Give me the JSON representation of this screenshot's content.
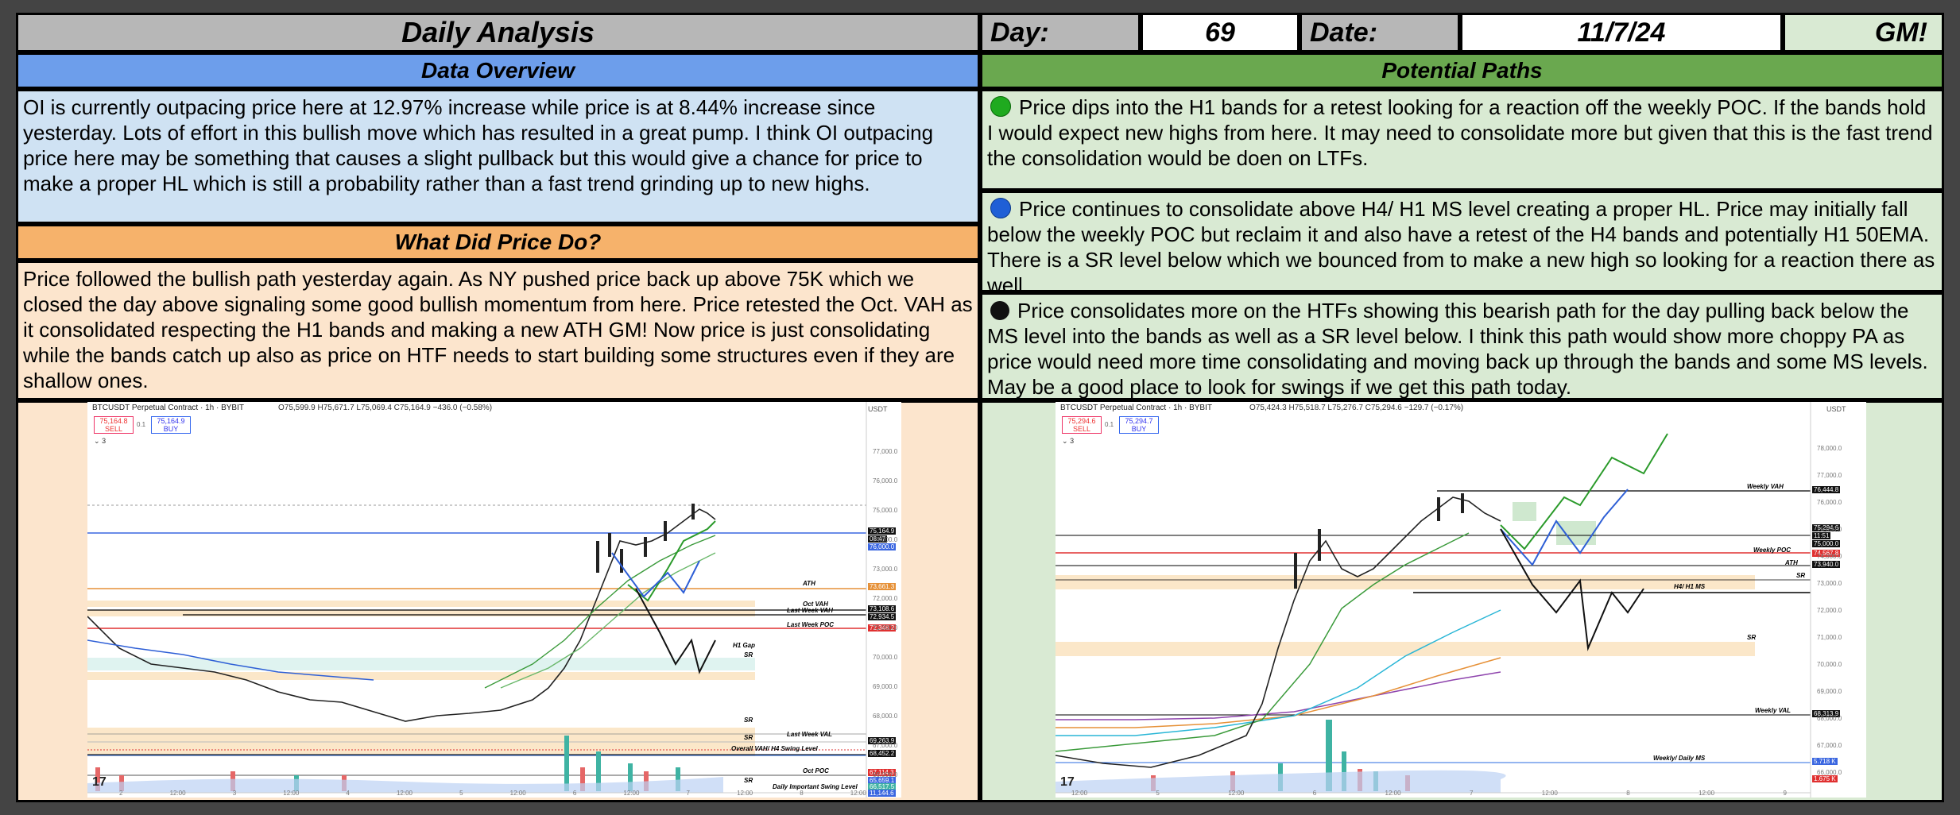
{
  "header": {
    "title": "Daily Analysis",
    "day_label": "Day:",
    "day_value": "69",
    "date_label": "Date:",
    "date_value": "11/7/24",
    "greeting": "GM!"
  },
  "data_overview": {
    "title": "Data Overview",
    "text": "OI is currently outpacing price here at 12.97% increase while price is at 8.44% increase since yesterday. Lots of effort in this bullish move which has resulted in a great pump. I think OI outpacing price here may be something that causes a slight pullback but this would give a chance for price to make a proper HL which is still a probability rather than a fast trend grinding up to new highs."
  },
  "what_did_price_do": {
    "title": "What Did Price Do?",
    "text": "Price followed the bullish path yesterday again. As NY pushed price back up above 75K which we closed the day above signaling some good bullish momentum from here. Price retested the Oct. VAH as it consolidated respecting the H1 bands and making a new ATH GM! Now price is just consolidating while the bands catch up also as price on HTF needs to start building some structures even if they are shallow ones."
  },
  "potential_paths": {
    "title": "Potential Paths",
    "paths": [
      {
        "color": "#1faa1f",
        "text": "Price dips into the H1 bands for a retest looking for a reaction off the weekly POC. If the bands hold I would expect new highs from here. It may need to consolidate more but given that this is the fast trend the consolidation would be doen on LTFs."
      },
      {
        "color": "#1f5fd6",
        "text": "Price continues to consolidate above H4/ H1 MS level creating a proper HL. Price may initially fall below the weekly POC but reclaim it and also have a retest of the H4 bands and potentially H1 50EMA. There is a SR level below which we bounced from to make a new high so looking for a reaction there as well."
      },
      {
        "color": "#111111",
        "text": "Price consolidates more on the HTFs showing this bearish path for the day pulling back below the MS level into the bands as well as a SR level below. I think this path would show more choppy PA as price would need more time consolidating and moving back up through the bands and some MS levels. May be a good place to look for swings if we get this path today."
      }
    ]
  },
  "chart_left": {
    "symbol": "BTCUSDT Perpetual Contract · 1h · BYBIT",
    "ohlc": "O75,599.9 H75,671.7 L75,069.4 C75,164.9 −436.0 (−0.58%)",
    "sell_price": "75,164.8",
    "sell_label": "SELL",
    "spread": "0.1",
    "buy_price": "75,164.9",
    "buy_label": "BUY",
    "indicator_count": "3",
    "currency": "USDT",
    "levels": [
      "ATH",
      "Oct VAH",
      "Last Week VAH",
      "Last Week POC",
      "H1 Gap",
      "SR",
      "SR",
      "SR",
      "Last Week VAL",
      "Overall VAH/ H4 Swing Level",
      "Oct POC",
      "SR",
      "Daily Important Swing Level"
    ],
    "price_tags": [
      "75,164.9",
      "08:47",
      "76,000.0",
      "73,661.3",
      "73,108.6",
      "72,934.5",
      "72,348.2",
      "69,263.9",
      "68,452.2",
      "67,114.3",
      "65,659.1",
      "66,517.5",
      "11,144.6"
    ],
    "axis_prices": [
      "77,000.0",
      "76,000.0",
      "75,000.0",
      "74,000.0",
      "73,000.0",
      "72,000.0",
      "71,000.0",
      "70,000.0",
      "69,000.0",
      "68,000.0",
      "67,000.0",
      "66,000.0",
      "65,000.0"
    ],
    "time_ticks": [
      "2",
      "12:00",
      "3",
      "12:00",
      "4",
      "12:00",
      "5",
      "12:00",
      "6",
      "12:00",
      "7",
      "12:00",
      "8",
      "12:00"
    ]
  },
  "chart_right": {
    "symbol": "BTCUSDT Perpetual Contract · 1h · BYBIT",
    "ohlc": "O75,424.3 H75,518.7 L75,276.7 C75,294.6 −129.7 (−0.17%)",
    "sell_price": "75,294.6",
    "sell_label": "SELL",
    "spread": "0.1",
    "buy_price": "75,294.7",
    "buy_label": "BUY",
    "indicator_count": "3",
    "currency": "USDT",
    "levels": [
      "Weekly VAH",
      "Weekly POC",
      "ATH",
      "SR",
      "H4/ H1 MS",
      "SR",
      "Weekly VAL",
      "Weekly/ Daily MS"
    ],
    "price_tags": [
      "76,444.8",
      "75,294.6",
      "11:51",
      "75,000.0",
      "74,567.8",
      "73,940.0",
      "68,313.9",
      "5.718 K",
      "1.675 K"
    ],
    "axis_prices": [
      "78,000.0",
      "77,000.0",
      "76,000.0",
      "75,000.0",
      "74,000.0",
      "73,000.0",
      "72,000.0",
      "71,000.0",
      "70,000.0",
      "69,000.0",
      "68,000.0",
      "67,000.0",
      "66,000.0"
    ],
    "time_ticks": [
      "12:00",
      "5",
      "12:00",
      "6",
      "12:00",
      "7",
      "12:00",
      "8",
      "12:00",
      "9"
    ]
  }
}
